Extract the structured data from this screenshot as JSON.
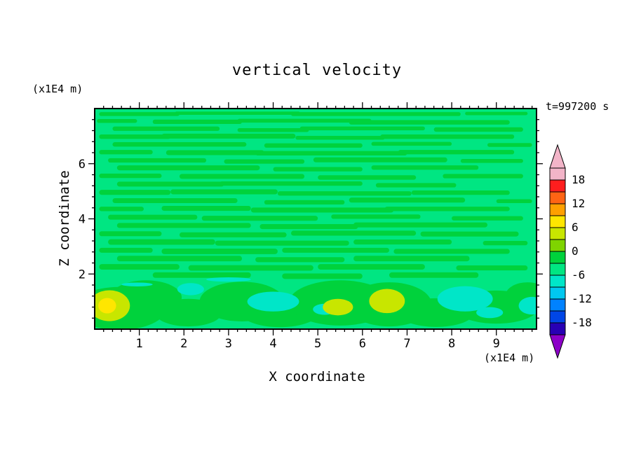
{
  "chart_data": {
    "type": "heatmap",
    "title": "vertical velocity",
    "timestamp": "t=997200 s",
    "xlabel": "X coordinate",
    "ylabel": "Z coordinate",
    "x_unit": "(x1E4 m)",
    "y_unit": "(x1E4 m)",
    "xlim": [
      0,
      9.9
    ],
    "ylim": [
      0,
      8
    ],
    "x_ticks": [
      1,
      2,
      3,
      4,
      5,
      6,
      7,
      8,
      9
    ],
    "y_ticks": [
      2,
      4,
      6
    ],
    "grid": false,
    "legend_position": "right-colorbar",
    "colorbar": {
      "labels": [
        "18",
        "12",
        "6",
        "0",
        "-6",
        "-12",
        "-18"
      ],
      "level_min": -21,
      "level_max": 21,
      "level_step": 3,
      "arrow_top_color": "#F2B4C8",
      "arrow_bottom_color": "#8C00C8",
      "segment_colors_top_to_bottom": [
        "#F2B4C8",
        "#FF1E1E",
        "#FF6414",
        "#FFA000",
        "#FFE600",
        "#C8E600",
        "#7FD400",
        "#00D23C",
        "#00E682",
        "#00E6C8",
        "#00C8F0",
        "#0082FF",
        "#0046E6",
        "#2800B4"
      ]
    },
    "field": {
      "description": "mostly near-zero vertical velocity: background level -3..0 with elongated 0..3 streaks; stronger up/downdraft blobs below z=2",
      "background_color": "#00E682",
      "streak_color": "#00D23C",
      "streaks": [
        [
          1.0,
          7.8,
          0.9,
          0.07
        ],
        [
          3.2,
          7.83,
          1.4,
          0.06
        ],
        [
          6.3,
          7.8,
          1.9,
          0.07
        ],
        [
          9.0,
          7.82,
          0.7,
          0.06
        ],
        [
          0.5,
          7.55,
          0.45,
          0.07
        ],
        [
          2.3,
          7.52,
          1.0,
          0.08
        ],
        [
          4.7,
          7.56,
          1.5,
          0.07
        ],
        [
          7.5,
          7.5,
          1.8,
          0.08
        ],
        [
          1.6,
          7.27,
          1.2,
          0.08
        ],
        [
          4.0,
          7.22,
          0.8,
          0.07
        ],
        [
          6.0,
          7.28,
          1.4,
          0.07
        ],
        [
          8.6,
          7.24,
          1.0,
          0.08
        ],
        [
          0.9,
          6.98,
          0.8,
          0.08
        ],
        [
          3.0,
          7.0,
          1.5,
          0.09
        ],
        [
          5.5,
          6.94,
          1.0,
          0.07
        ],
        [
          7.9,
          6.98,
          1.5,
          0.08
        ],
        [
          1.9,
          6.7,
          1.5,
          0.08
        ],
        [
          4.9,
          6.66,
          1.1,
          0.08
        ],
        [
          7.1,
          6.72,
          0.9,
          0.07
        ],
        [
          9.3,
          6.68,
          0.5,
          0.07
        ],
        [
          0.7,
          6.42,
          0.6,
          0.08
        ],
        [
          2.7,
          6.4,
          1.1,
          0.09
        ],
        [
          5.3,
          6.38,
          1.7,
          0.08
        ],
        [
          8.1,
          6.42,
          1.3,
          0.08
        ],
        [
          1.4,
          6.12,
          1.1,
          0.08
        ],
        [
          3.8,
          6.08,
          0.9,
          0.08
        ],
        [
          6.4,
          6.14,
          1.5,
          0.09
        ],
        [
          8.9,
          6.1,
          0.7,
          0.07
        ],
        [
          2.1,
          5.85,
          1.6,
          0.09
        ],
        [
          5.0,
          5.8,
          1.0,
          0.08
        ],
        [
          7.4,
          5.86,
          1.2,
          0.08
        ],
        [
          0.8,
          5.56,
          0.7,
          0.08
        ],
        [
          3.3,
          5.54,
          1.4,
          0.09
        ],
        [
          6.1,
          5.5,
          1.1,
          0.08
        ],
        [
          8.7,
          5.55,
          0.9,
          0.08
        ],
        [
          1.7,
          5.26,
          1.2,
          0.09
        ],
        [
          4.4,
          5.28,
          1.6,
          0.08
        ],
        [
          7.2,
          5.22,
          0.9,
          0.08
        ],
        [
          0.9,
          4.96,
          0.8,
          0.09
        ],
        [
          2.9,
          4.98,
          1.2,
          0.09
        ],
        [
          5.6,
          4.92,
          1.5,
          0.08
        ],
        [
          8.2,
          4.95,
          1.1,
          0.08
        ],
        [
          1.8,
          4.66,
          1.4,
          0.09
        ],
        [
          4.7,
          4.6,
          0.9,
          0.08
        ],
        [
          7.0,
          4.68,
          1.3,
          0.09
        ],
        [
          9.4,
          4.64,
          0.4,
          0.07
        ],
        [
          0.6,
          4.36,
          0.5,
          0.08
        ],
        [
          2.5,
          4.38,
          1.0,
          0.09
        ],
        [
          5.1,
          4.32,
          1.6,
          0.09
        ],
        [
          7.9,
          4.36,
          1.4,
          0.08
        ],
        [
          1.3,
          4.06,
          1.0,
          0.09
        ],
        [
          3.7,
          4.02,
          1.3,
          0.09
        ],
        [
          6.3,
          4.08,
          1.0,
          0.08
        ],
        [
          8.8,
          4.02,
          0.8,
          0.08
        ],
        [
          2.0,
          3.76,
          1.5,
          0.09
        ],
        [
          4.8,
          3.72,
          1.1,
          0.09
        ],
        [
          7.3,
          3.78,
          1.5,
          0.09
        ],
        [
          0.8,
          3.46,
          0.7,
          0.09
        ],
        [
          3.1,
          3.42,
          1.2,
          0.09
        ],
        [
          5.8,
          3.48,
          1.4,
          0.09
        ],
        [
          8.4,
          3.45,
          1.1,
          0.09
        ],
        [
          1.5,
          3.16,
          1.2,
          0.1
        ],
        [
          4.2,
          3.12,
          1.5,
          0.09
        ],
        [
          6.9,
          3.16,
          1.1,
          0.09
        ],
        [
          9.2,
          3.12,
          0.5,
          0.08
        ],
        [
          0.7,
          2.86,
          0.6,
          0.09
        ],
        [
          2.8,
          2.82,
          1.3,
          0.1
        ],
        [
          5.4,
          2.86,
          1.2,
          0.09
        ],
        [
          8.0,
          2.82,
          1.3,
          0.09
        ],
        [
          1.9,
          2.56,
          1.4,
          0.1
        ],
        [
          4.6,
          2.52,
          1.0,
          0.09
        ],
        [
          7.1,
          2.56,
          1.3,
          0.1
        ],
        [
          1.0,
          2.26,
          0.9,
          0.1
        ],
        [
          3.5,
          2.22,
          1.4,
          0.1
        ],
        [
          6.2,
          2.26,
          1.2,
          0.1
        ],
        [
          8.9,
          2.22,
          0.8,
          0.09
        ],
        [
          2.4,
          1.96,
          1.1,
          0.1
        ],
        [
          5.1,
          1.92,
          0.9,
          0.1
        ],
        [
          7.6,
          1.96,
          1.0,
          0.1
        ]
      ],
      "blobs": [
        [
          0.55,
          0.75,
          1.05,
          0.78,
          "#00D23C"
        ],
        [
          1.15,
          1.15,
          0.8,
          0.62,
          "#00D23C"
        ],
        [
          2.1,
          0.6,
          0.75,
          0.5,
          "#00D23C"
        ],
        [
          3.3,
          1.0,
          0.95,
          0.72,
          "#00D23C"
        ],
        [
          4.15,
          0.65,
          0.9,
          0.58,
          "#00D23C"
        ],
        [
          5.5,
          0.95,
          1.15,
          0.82,
          "#00D23C"
        ],
        [
          6.6,
          0.9,
          0.95,
          0.8,
          "#00D23C"
        ],
        [
          7.65,
          0.6,
          0.85,
          0.52,
          "#00D23C"
        ],
        [
          9.0,
          0.8,
          0.95,
          0.6,
          "#00D23C"
        ],
        [
          9.7,
          1.2,
          0.5,
          0.5,
          "#00D23C"
        ],
        [
          2.15,
          1.45,
          0.3,
          0.22,
          "#00E6C8"
        ],
        [
          4.0,
          1.0,
          0.58,
          0.36,
          "#00E6C8"
        ],
        [
          5.15,
          0.72,
          0.26,
          0.2,
          "#00E6C8"
        ],
        [
          8.3,
          1.1,
          0.62,
          0.46,
          "#00E6C8"
        ],
        [
          8.85,
          0.6,
          0.3,
          0.2,
          "#00E6C8"
        ],
        [
          9.8,
          0.85,
          0.3,
          0.32,
          "#00E6C8"
        ],
        [
          3.0,
          1.8,
          0.5,
          0.08,
          "#00E6C8"
        ],
        [
          0.95,
          1.62,
          0.35,
          0.07,
          "#00E6C8"
        ],
        [
          0.33,
          0.85,
          0.46,
          0.56,
          "#C8E600"
        ],
        [
          5.45,
          0.8,
          0.34,
          0.3,
          "#C8E600"
        ],
        [
          6.55,
          1.02,
          0.4,
          0.44,
          "#C8E600"
        ],
        [
          0.28,
          0.85,
          0.2,
          0.28,
          "#FFE600"
        ]
      ]
    }
  }
}
